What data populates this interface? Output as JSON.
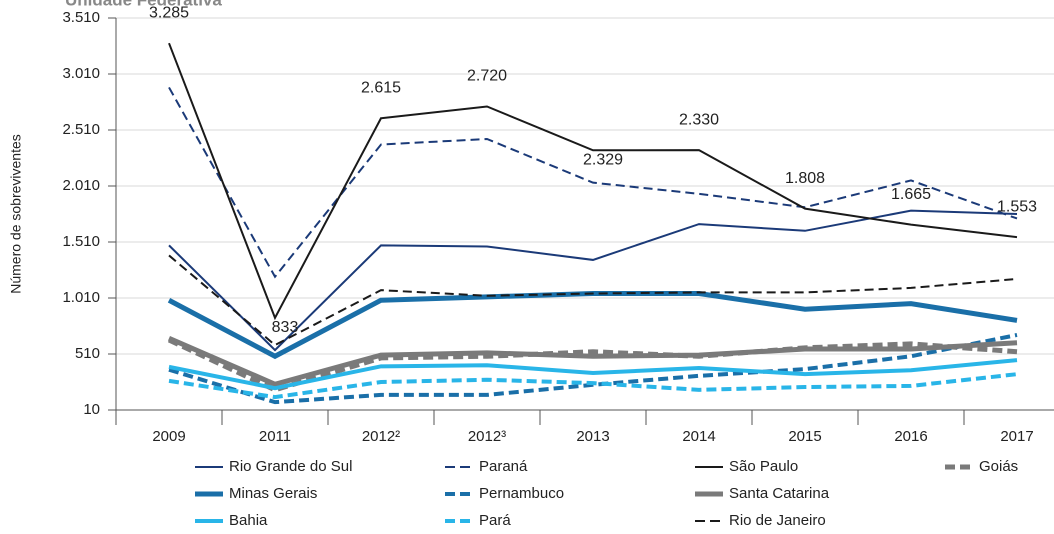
{
  "chart_data": {
    "type": "line",
    "title": "Unidade Federativa",
    "y_label": "Número de sobreviventes",
    "categories": [
      "2009",
      "2011",
      "2012²",
      "2012³",
      "2013",
      "2014",
      "2015",
      "2016",
      "2017"
    ],
    "ylim": [
      10,
      3510
    ],
    "yticks": [
      10,
      510,
      {
        "value": 1010,
        "label": "1.010"
      },
      {
        "value": 1510,
        "label": "1.510"
      },
      {
        "value": 2010,
        "label": "2.010"
      },
      {
        "value": 2510,
        "label": "2.510"
      },
      {
        "value": 3010,
        "label": "3.010"
      },
      {
        "value": 3510,
        "label": "3.510"
      }
    ],
    "grid": true,
    "series": [
      {
        "name": "Rio Grande do Sul",
        "color": "#1b3a78",
        "dashed": false,
        "line_width": 2,
        "values": [
          1480,
          545,
          1480,
          1470,
          1350,
          1670,
          1610,
          1790,
          1760
        ]
      },
      {
        "name": "Paraná",
        "color": "#1b3a78",
        "dashed": true,
        "line_width": 2,
        "values": [
          2890,
          1200,
          2380,
          2430,
          2040,
          1940,
          1820,
          2060,
          1720
        ]
      },
      {
        "name": "São Paulo",
        "color": "#1a1a1a",
        "dashed": false,
        "line_width": 2,
        "values": [
          3285,
          833,
          2615,
          2720,
          2329,
          2330,
          1808,
          1665,
          1553
        ],
        "value_labels": [
          "3.285",
          "833",
          "2.615",
          "2.720",
          "2.329",
          "2.330",
          "1.808",
          "1.665",
          "1.553"
        ]
      },
      {
        "name": "Goiás",
        "color": "#7a7a7a",
        "dashed": true,
        "line_width": 5,
        "values": [
          635,
          190,
          475,
          490,
          530,
          490,
          565,
          600,
          530
        ]
      },
      {
        "name": "Minas Gerais",
        "color": "#1a6fa8",
        "dashed": false,
        "line_width": 5,
        "values": [
          990,
          490,
          990,
          1020,
          1050,
          1050,
          910,
          960,
          810
        ]
      },
      {
        "name": "Pernambuco",
        "color": "#1a6fa8",
        "dashed": true,
        "line_width": 4,
        "values": [
          370,
          80,
          145,
          145,
          235,
          315,
          375,
          490,
          680
        ]
      },
      {
        "name": "Santa Catarina",
        "color": "#7a7a7a",
        "dashed": false,
        "line_width": 5,
        "values": [
          650,
          240,
          500,
          520,
          490,
          500,
          555,
          555,
          610
        ]
      },
      {
        "name": "Bahia",
        "color": "#29b5e8",
        "dashed": false,
        "line_width": 4,
        "values": [
          395,
          205,
          400,
          410,
          340,
          385,
          330,
          365,
          455
        ]
      },
      {
        "name": "Pará",
        "color": "#29b5e8",
        "dashed": true,
        "line_width": 4,
        "values": [
          270,
          125,
          260,
          280,
          250,
          190,
          215,
          225,
          330
        ]
      },
      {
        "name": "Rio de Janeiro",
        "color": "#1a1a1a",
        "dashed": true,
        "line_width": 2,
        "values": [
          1390,
          590,
          1080,
          1030,
          1050,
          1060,
          1060,
          1100,
          1180
        ]
      }
    ]
  }
}
